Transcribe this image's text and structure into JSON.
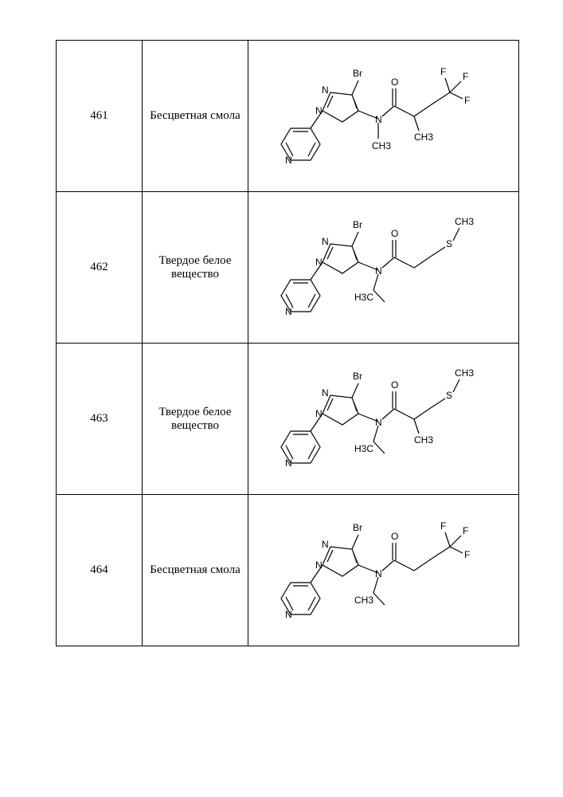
{
  "table": {
    "rows": [
      {
        "id": "461",
        "description": "Бесцветная смола",
        "structure": {
          "br_label": "Br",
          "o_label": "O",
          "n_upper_ch3": "CH3",
          "n_lower": "CH3",
          "terminal_labels": [
            "F",
            "F",
            "F"
          ],
          "side_methyl": "CH3",
          "n_alkyl": "methyl",
          "chain_type": "branched_f3"
        }
      },
      {
        "id": "462",
        "description": "Твердое белое вещество",
        "structure": {
          "br_label": "Br",
          "o_label": "O",
          "n_lower": "H3C",
          "terminal_labels": [
            "CH3"
          ],
          "side_methyl": "",
          "n_alkyl": "ethyl",
          "chain_type": "linear_s"
        }
      },
      {
        "id": "463",
        "description": "Твердое белое вещество",
        "structure": {
          "br_label": "Br",
          "o_label": "O",
          "n_lower": "H3C",
          "terminal_labels": [
            "CH3"
          ],
          "side_methyl": "CH3",
          "n_alkyl": "ethyl",
          "chain_type": "branched_s"
        }
      },
      {
        "id": "464",
        "description": "Бесцветная смола",
        "structure": {
          "br_label": "Br",
          "o_label": "O",
          "n_lower": "CH3",
          "terminal_labels": [
            "F",
            "F",
            "F"
          ],
          "side_methyl": "",
          "n_alkyl": "ethyl",
          "chain_type": "linear_f3"
        }
      }
    ]
  },
  "style": {
    "stroke": "#000000",
    "stroke_width": 1.2,
    "font_size_label": 12,
    "font_family": "Arial, sans-serif",
    "background": "#ffffff"
  }
}
